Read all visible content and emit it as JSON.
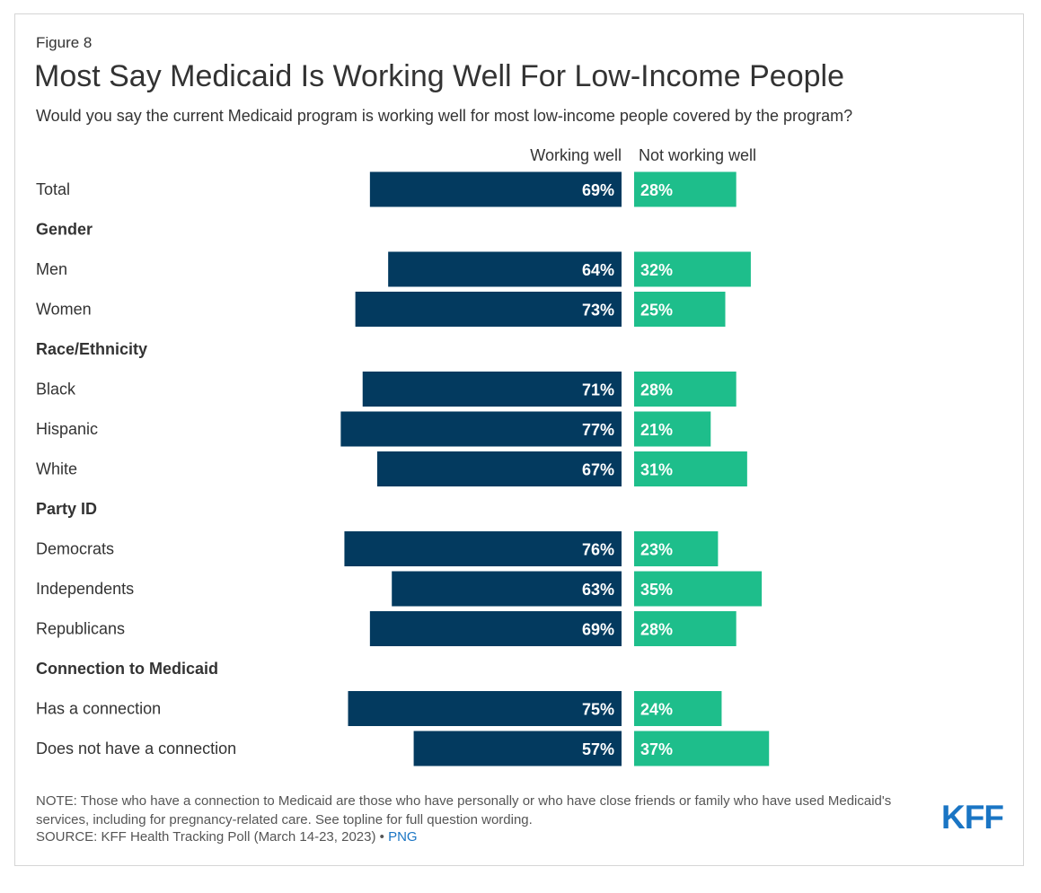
{
  "figure_label": "Figure 8",
  "title": "Most Say Medicaid Is Working Well For Low-Income People",
  "subtitle": "Would you say the current Medicaid program is working well for most low-income people covered by the program?",
  "note": "NOTE: Those who have a connection to Medicaid are those who have personally or who have close friends or family who have used Medicaid's services, including for pregnancy-related care. See topline for full question wording.",
  "source_text": "SOURCE: KFF Health Tracking Poll (March 14-23, 2023) •",
  "source_link": "PNG",
  "logo_text": "KFF",
  "colors": {
    "working_well": "#033a5f",
    "not_working_well": "#1ebe8b",
    "logo": "#1a75c4"
  },
  "chart_data": {
    "type": "bar",
    "orientation": "horizontal-diverging",
    "series": [
      {
        "name": "Working well",
        "color": "#033a5f"
      },
      {
        "name": "Not working well",
        "color": "#1ebe8b"
      }
    ],
    "rows": [
      {
        "label": "Total",
        "kind": "item",
        "working_well": 69,
        "not_working_well": 28
      },
      {
        "label": "Gender",
        "kind": "header"
      },
      {
        "label": "Men",
        "kind": "item",
        "working_well": 64,
        "not_working_well": 32
      },
      {
        "label": "Women",
        "kind": "item",
        "working_well": 73,
        "not_working_well": 25
      },
      {
        "label": "Race/Ethnicity",
        "kind": "header"
      },
      {
        "label": "Black",
        "kind": "item",
        "working_well": 71,
        "not_working_well": 28
      },
      {
        "label": "Hispanic",
        "kind": "item",
        "working_well": 77,
        "not_working_well": 21
      },
      {
        "label": "White",
        "kind": "item",
        "working_well": 67,
        "not_working_well": 31
      },
      {
        "label": "Party ID",
        "kind": "header"
      },
      {
        "label": "Democrats",
        "kind": "item",
        "working_well": 76,
        "not_working_well": 23
      },
      {
        "label": "Independents",
        "kind": "item",
        "working_well": 63,
        "not_working_well": 35
      },
      {
        "label": "Republicans",
        "kind": "item",
        "working_well": 69,
        "not_working_well": 28
      },
      {
        "label": "Connection to Medicaid",
        "kind": "header"
      },
      {
        "label": "Has a connection",
        "kind": "item",
        "working_well": 75,
        "not_working_well": 24
      },
      {
        "label": "Does not have a connection",
        "kind": "item",
        "working_well": 57,
        "not_working_well": 37
      }
    ],
    "value_suffix": "%"
  }
}
